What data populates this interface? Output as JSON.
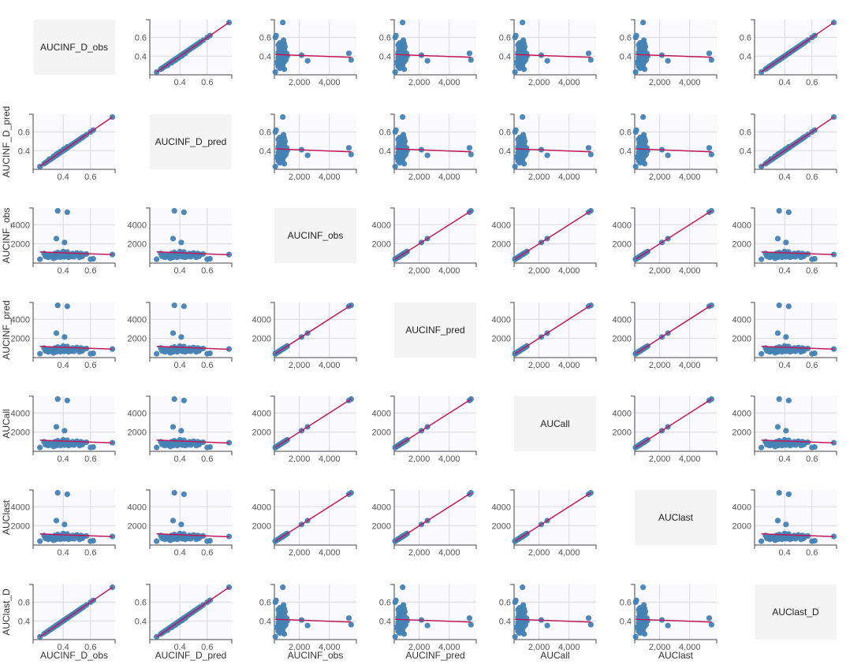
{
  "chart_data": {
    "type": "scatter",
    "layout": "scatterplot-matrix",
    "grid": true,
    "variables": [
      "AUCINF_D_obs",
      "AUCINF_D_pred",
      "AUCINF_obs",
      "AUCINF_pred",
      "AUCall",
      "AUClast",
      "AUClast_D"
    ],
    "variable_kind": {
      "AUCINF_D_obs": "dose",
      "AUCINF_D_pred": "dose",
      "AUCINF_obs": "auc",
      "AUCINF_pred": "auc",
      "AUCall": "auc",
      "AUClast": "auc",
      "AUClast_D": "dose"
    },
    "axes": {
      "dose": {
        "xlim": [
          0.18,
          0.78
        ],
        "ylim": [
          0.2,
          0.79
        ],
        "x_ticks": [
          0.4,
          0.6
        ],
        "x_tick_labels": [
          "0.4",
          "0.6"
        ],
        "y_ticks": [
          0.4,
          0.6
        ],
        "y_tick_labels": [
          "0.4",
          "0.6"
        ]
      },
      "auc": {
        "xlim": [
          340,
          5800
        ],
        "ylim": [
          0,
          5750
        ],
        "x_ticks": [
          2000,
          4000
        ],
        "x_tick_labels": [
          "2,000",
          "4,000"
        ],
        "y_ticks": [
          2000,
          4000
        ],
        "y_tick_labels": [
          "2000",
          "4000"
        ]
      }
    },
    "values": {
      "AUCINF_D_obs": [
        0.23,
        0.26,
        0.27,
        0.28,
        0.29,
        0.3,
        0.3,
        0.31,
        0.32,
        0.33,
        0.33,
        0.34,
        0.35,
        0.35,
        0.36,
        0.36,
        0.37,
        0.38,
        0.38,
        0.39,
        0.4,
        0.4,
        0.41,
        0.41,
        0.42,
        0.43,
        0.43,
        0.44,
        0.45,
        0.46,
        0.47,
        0.48,
        0.49,
        0.5,
        0.51,
        0.52,
        0.53,
        0.54,
        0.55,
        0.57,
        0.6,
        0.62,
        0.76,
        0.43,
        0.36,
        0.41,
        0.35
      ],
      "AUCINF_D_pred": [
        0.23,
        0.26,
        0.27,
        0.28,
        0.29,
        0.3,
        0.31,
        0.31,
        0.32,
        0.33,
        0.34,
        0.34,
        0.35,
        0.36,
        0.36,
        0.37,
        0.37,
        0.38,
        0.39,
        0.39,
        0.4,
        0.41,
        0.41,
        0.42,
        0.42,
        0.43,
        0.44,
        0.44,
        0.45,
        0.46,
        0.47,
        0.48,
        0.49,
        0.5,
        0.51,
        0.52,
        0.53,
        0.54,
        0.55,
        0.57,
        0.6,
        0.62,
        0.76,
        0.43,
        0.36,
        0.41,
        0.35
      ],
      "AUCINF_obs": [
        400,
        1000,
        700,
        900,
        600,
        800,
        650,
        900,
        700,
        500,
        800,
        1000,
        600,
        850,
        1100,
        700,
        950,
        600,
        1000,
        800,
        1200,
        700,
        1100,
        650,
        900,
        1150,
        750,
        600,
        850,
        700,
        1000,
        650,
        900,
        1050,
        800,
        600,
        1000,
        700,
        900,
        950,
        400,
        450,
        900,
        5300,
        5450,
        2150,
        2550
      ],
      "AUCINF_pred": [
        400,
        1000,
        700,
        900,
        600,
        800,
        650,
        900,
        700,
        500,
        800,
        1000,
        600,
        850,
        1100,
        700,
        950,
        600,
        1000,
        800,
        1200,
        700,
        1100,
        650,
        900,
        1150,
        750,
        600,
        850,
        700,
        1000,
        650,
        900,
        1050,
        800,
        600,
        1000,
        700,
        900,
        950,
        400,
        450,
        900,
        5350,
        5450,
        2150,
        2550
      ],
      "AUCall": [
        400,
        1000,
        700,
        900,
        600,
        800,
        650,
        900,
        700,
        500,
        800,
        1000,
        600,
        850,
        1100,
        700,
        950,
        600,
        1000,
        800,
        1200,
        700,
        1100,
        650,
        900,
        1150,
        750,
        600,
        850,
        700,
        1000,
        650,
        900,
        1050,
        800,
        600,
        1000,
        700,
        900,
        950,
        400,
        450,
        900,
        5300,
        5450,
        2150,
        2550
      ],
      "AUClast": [
        400,
        1000,
        700,
        900,
        600,
        800,
        650,
        900,
        700,
        500,
        800,
        1000,
        600,
        850,
        1100,
        700,
        950,
        600,
        1000,
        800,
        1200,
        700,
        1100,
        650,
        900,
        1150,
        750,
        600,
        850,
        700,
        1000,
        650,
        900,
        1050,
        800,
        600,
        1000,
        700,
        900,
        950,
        400,
        450,
        900,
        5300,
        5450,
        2150,
        2550
      ],
      "AUClast_D": [
        0.23,
        0.26,
        0.27,
        0.28,
        0.29,
        0.3,
        0.3,
        0.31,
        0.32,
        0.33,
        0.33,
        0.34,
        0.35,
        0.35,
        0.36,
        0.36,
        0.37,
        0.38,
        0.38,
        0.39,
        0.4,
        0.4,
        0.41,
        0.41,
        0.42,
        0.43,
        0.43,
        0.44,
        0.45,
        0.46,
        0.47,
        0.48,
        0.49,
        0.5,
        0.51,
        0.52,
        0.53,
        0.54,
        0.55,
        0.57,
        0.6,
        0.62,
        0.76,
        0.43,
        0.36,
        0.41,
        0.35
      ]
    },
    "trend_line": "linear",
    "colors": {
      "points": "#4682b4",
      "trend_line": "#c2185b",
      "grid": "#d9d9d9",
      "plot_bg": "#fafafe",
      "diagonal_bg": "#f4f4f4",
      "axis": "#444444"
    }
  }
}
